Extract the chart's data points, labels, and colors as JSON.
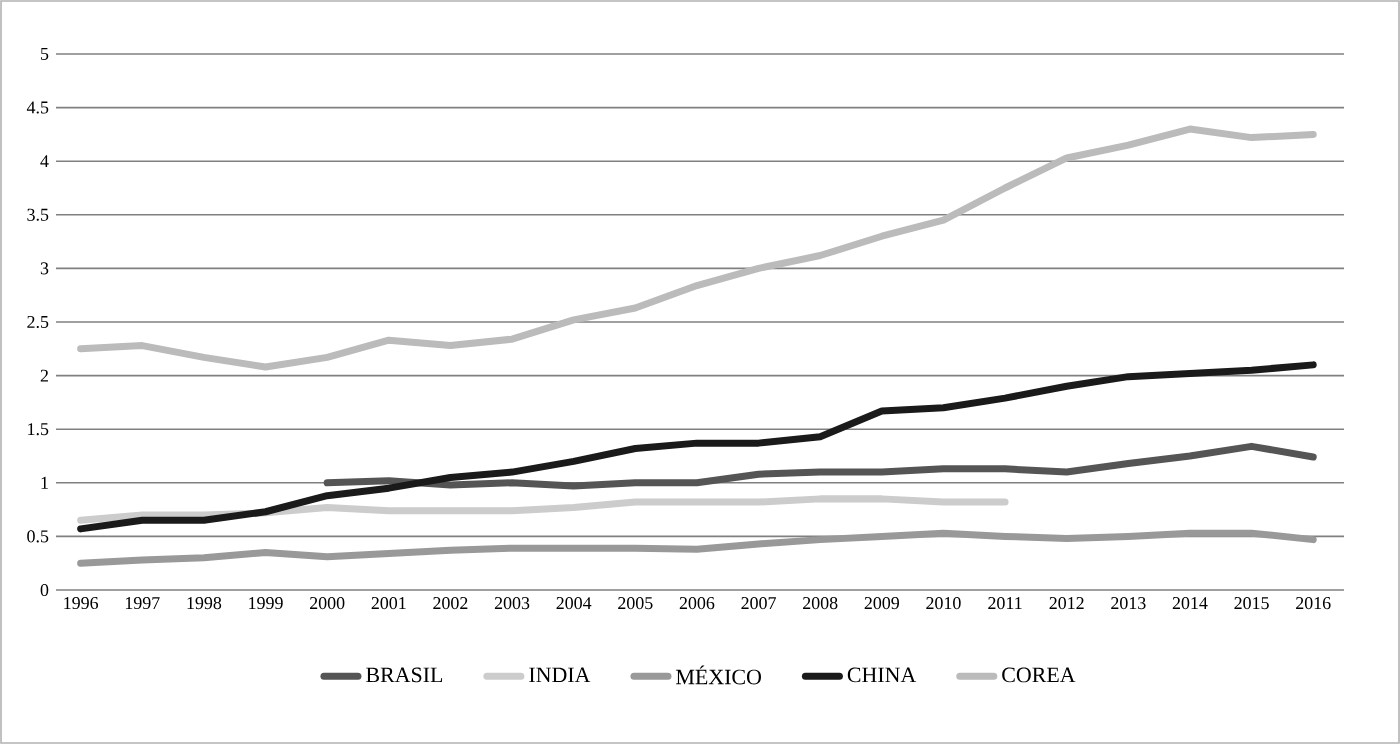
{
  "chart_data": {
    "type": "line",
    "categories": [
      "1996",
      "1997",
      "1998",
      "1999",
      "2000",
      "2001",
      "2002",
      "2003",
      "2004",
      "2005",
      "2006",
      "2007",
      "2008",
      "2009",
      "2010",
      "2011",
      "2012",
      "2013",
      "2014",
      "2015",
      "2016"
    ],
    "series": [
      {
        "name": "BRASIL",
        "color": "#555555",
        "values": [
          null,
          null,
          null,
          null,
          1.0,
          1.02,
          0.98,
          1.0,
          0.97,
          1.0,
          1.0,
          1.08,
          1.1,
          1.1,
          1.13,
          1.13,
          1.1,
          1.18,
          1.25,
          1.34,
          1.24
        ]
      },
      {
        "name": "INDIA",
        "color": "#cccccc",
        "values": [
          0.65,
          0.7,
          0.7,
          0.72,
          0.77,
          0.74,
          0.74,
          0.74,
          0.77,
          0.82,
          0.82,
          0.82,
          0.85,
          0.85,
          0.82,
          0.82,
          null,
          null,
          null,
          null,
          null
        ]
      },
      {
        "name": "MÉXICO",
        "color": "#999999",
        "values": [
          0.25,
          0.28,
          0.3,
          0.35,
          0.31,
          0.34,
          0.37,
          0.39,
          0.39,
          0.39,
          0.38,
          0.43,
          0.47,
          0.5,
          0.53,
          0.5,
          0.48,
          0.5,
          0.53,
          0.53,
          0.47
        ]
      },
      {
        "name": "CHINA",
        "color": "#1a1a1a",
        "values": [
          0.57,
          0.65,
          0.65,
          0.73,
          0.88,
          0.95,
          1.05,
          1.1,
          1.2,
          1.32,
          1.37,
          1.37,
          1.43,
          1.67,
          1.7,
          1.79,
          1.9,
          1.99,
          2.02,
          2.05,
          2.1
        ]
      },
      {
        "name": "COREA",
        "color": "#bbbbbb",
        "values": [
          2.25,
          2.28,
          2.17,
          2.08,
          2.17,
          2.33,
          2.28,
          2.34,
          2.52,
          2.63,
          2.84,
          3.0,
          3.12,
          3.3,
          3.45,
          3.75,
          4.03,
          4.15,
          4.3,
          4.22,
          4.25
        ]
      }
    ],
    "ylim": [
      0,
      5
    ],
    "yticks": [
      0,
      0.5,
      1,
      1.5,
      2,
      2.5,
      3,
      3.5,
      4,
      4.5,
      5
    ],
    "grid": "y",
    "legend": "bottom",
    "marker": "none",
    "line_style": "solid"
  }
}
